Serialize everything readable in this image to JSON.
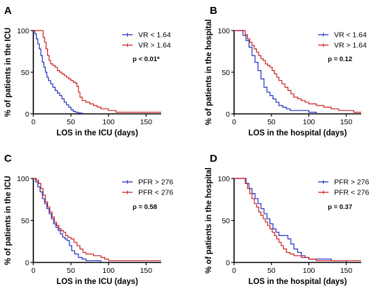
{
  "chart_data": [
    {
      "type": "line",
      "panel": "A",
      "xlabel": "LOS in the ICU (days)",
      "ylabel": "% of patients in the ICU",
      "xlim": [
        0,
        170
      ],
      "ylim": [
        0,
        100
      ],
      "xticks": [
        0,
        50,
        100,
        150
      ],
      "yticks": [
        0,
        50,
        100
      ],
      "pvalue": "p < 0.01*",
      "series": [
        {
          "name": "VR < 1.64",
          "color": "#1f2fbf",
          "x": [
            0,
            2,
            4,
            6,
            8,
            10,
            12,
            14,
            16,
            18,
            20,
            23,
            26,
            29,
            32,
            35,
            38,
            41,
            44,
            47,
            50,
            53,
            56,
            60,
            65
          ],
          "y": [
            100,
            96,
            90,
            84,
            78,
            70,
            62,
            56,
            50,
            44,
            40,
            36,
            32,
            28,
            25,
            22,
            18,
            14,
            11,
            8,
            5,
            3,
            2,
            1,
            0
          ]
        },
        {
          "name": "VR > 1.64",
          "color": "#cc1f1f",
          "x": [
            0,
            10,
            13,
            15,
            17,
            19,
            21,
            23,
            26,
            29,
            32,
            35,
            38,
            41,
            44,
            47,
            50,
            53,
            56,
            58,
            60,
            62,
            65,
            70,
            75,
            80,
            85,
            90,
            100,
            110,
            120,
            170
          ],
          "y": [
            100,
            100,
            92,
            86,
            78,
            70,
            64,
            60,
            58,
            56,
            52,
            50,
            48,
            46,
            44,
            42,
            40,
            38,
            37,
            33,
            26,
            20,
            16,
            14,
            12,
            10,
            8,
            6,
            4,
            2,
            2,
            2
          ]
        }
      ]
    },
    {
      "type": "line",
      "panel": "B",
      "xlabel": "LOS in the hospital (days)",
      "ylabel": "% of patients in the hospital",
      "xlim": [
        0,
        170
      ],
      "ylim": [
        0,
        100
      ],
      "xticks": [
        0,
        50,
        100,
        150
      ],
      "yticks": [
        0,
        50,
        100
      ],
      "pvalue": "p = 0.12",
      "series": [
        {
          "name": "VR < 1.64",
          "color": "#1f2fbf",
          "x": [
            0,
            8,
            12,
            16,
            20,
            24,
            28,
            32,
            36,
            40,
            44,
            48,
            52,
            56,
            60,
            65,
            70,
            75,
            80,
            90,
            100,
            110
          ],
          "y": [
            100,
            100,
            94,
            88,
            80,
            70,
            62,
            52,
            42,
            32,
            26,
            22,
            18,
            14,
            10,
            8,
            6,
            4,
            4,
            4,
            2,
            0
          ]
        },
        {
          "name": "VR > 1.64",
          "color": "#cc1f1f",
          "x": [
            0,
            12,
            15,
            18,
            21,
            24,
            27,
            30,
            33,
            36,
            39,
            42,
            45,
            48,
            51,
            54,
            57,
            60,
            64,
            68,
            72,
            76,
            80,
            85,
            90,
            95,
            100,
            110,
            120,
            130,
            140,
            150,
            160,
            170
          ],
          "y": [
            100,
            100,
            95,
            90,
            86,
            82,
            78,
            74,
            70,
            66,
            64,
            60,
            58,
            56,
            52,
            48,
            44,
            40,
            36,
            32,
            28,
            24,
            20,
            18,
            16,
            14,
            12,
            10,
            8,
            6,
            4,
            4,
            2,
            2
          ]
        }
      ]
    },
    {
      "type": "line",
      "panel": "C",
      "xlabel": "LOS in the ICU (days)",
      "ylabel": "% of patients in the ICU",
      "xlim": [
        0,
        170
      ],
      "ylim": [
        0,
        100
      ],
      "xticks": [
        0,
        50,
        100,
        150
      ],
      "yticks": [
        0,
        50,
        100
      ],
      "pvalue": "p = 0.58",
      "series": [
        {
          "name": "PFR > 276",
          "color": "#1f2fbf",
          "x": [
            0,
            3,
            6,
            9,
            12,
            15,
            18,
            21,
            24,
            27,
            30,
            33,
            36,
            39,
            42,
            45,
            48,
            51,
            55,
            60,
            65,
            70,
            80,
            90
          ],
          "y": [
            100,
            96,
            90,
            84,
            76,
            70,
            64,
            58,
            52,
            46,
            42,
            38,
            34,
            30,
            28,
            26,
            20,
            14,
            10,
            6,
            4,
            2,
            2,
            0
          ]
        },
        {
          "name": "PFR < 276",
          "color": "#cc1f1f",
          "x": [
            0,
            4,
            7,
            10,
            13,
            16,
            19,
            22,
            25,
            28,
            31,
            34,
            37,
            40,
            43,
            46,
            50,
            54,
            58,
            62,
            66,
            70,
            80,
            90,
            95,
            100,
            110,
            120,
            170
          ],
          "y": [
            100,
            98,
            94,
            88,
            80,
            72,
            66,
            60,
            54,
            48,
            44,
            40,
            38,
            36,
            32,
            30,
            28,
            24,
            20,
            16,
            12,
            10,
            8,
            6,
            4,
            2,
            2,
            2,
            2
          ]
        }
      ]
    },
    {
      "type": "line",
      "panel": "D",
      "xlabel": "LOS in the hospital (days)",
      "ylabel": "% of patients in the hospital",
      "xlim": [
        0,
        170
      ],
      "ylim": [
        0,
        100
      ],
      "xticks": [
        0,
        50,
        100,
        150
      ],
      "yticks": [
        0,
        50,
        100
      ],
      "pvalue": "p = 0.37",
      "series": [
        {
          "name": "PFR > 276",
          "color": "#1f2fbf",
          "x": [
            0,
            12,
            16,
            20,
            24,
            28,
            32,
            36,
            40,
            44,
            48,
            52,
            56,
            60,
            68,
            72,
            76,
            80,
            85,
            90,
            95,
            100,
            110,
            120,
            130,
            145,
            150
          ],
          "y": [
            100,
            100,
            94,
            88,
            82,
            76,
            70,
            64,
            58,
            52,
            46,
            40,
            36,
            32,
            32,
            28,
            22,
            16,
            12,
            8,
            6,
            4,
            4,
            4,
            2,
            2,
            0
          ]
        },
        {
          "name": "PFR < 276",
          "color": "#cc1f1f",
          "x": [
            0,
            12,
            15,
            18,
            21,
            24,
            27,
            30,
            33,
            36,
            39,
            42,
            45,
            48,
            51,
            54,
            57,
            60,
            63,
            66,
            70,
            75,
            80,
            90,
            100,
            110,
            120,
            140,
            160,
            170
          ],
          "y": [
            100,
            100,
            94,
            88,
            82,
            76,
            70,
            66,
            60,
            56,
            52,
            48,
            44,
            40,
            36,
            32,
            28,
            24,
            20,
            16,
            12,
            10,
            8,
            6,
            4,
            2,
            2,
            2,
            2,
            2
          ]
        }
      ]
    }
  ]
}
